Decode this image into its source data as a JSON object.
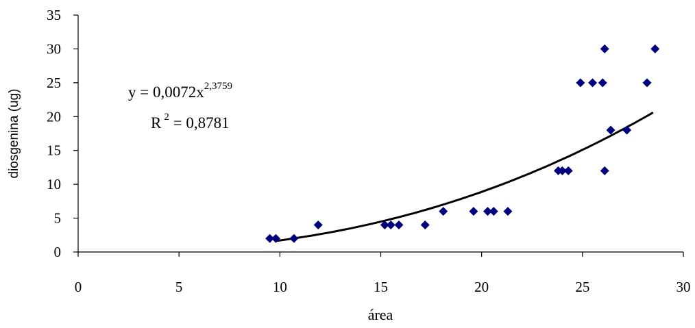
{
  "chart_data": {
    "type": "scatter",
    "xlabel": "área",
    "ylabel": "diosgenina (ug)",
    "xlim": [
      0,
      30
    ],
    "ylim": [
      0,
      35
    ],
    "x_ticks": [
      0,
      5,
      10,
      15,
      20,
      25,
      30
    ],
    "y_ticks": [
      0,
      5,
      10,
      15,
      20,
      25,
      30,
      35
    ],
    "grid": false,
    "marker": "diamond",
    "marker_color": "#00007f",
    "trendline": {
      "type": "power",
      "a": 0.0072,
      "b": 2.3759,
      "x_range": [
        9.8,
        28.5
      ],
      "color": "#000000"
    },
    "equation": {
      "prefix": "y = 0,0072x",
      "exponent": "2,3759",
      "r_prefix": "R",
      "r_exponent": "2",
      "r_value": " = 0,8781"
    },
    "points": [
      {
        "x": 9.5,
        "y": 2
      },
      {
        "x": 9.8,
        "y": 2
      },
      {
        "x": 10.7,
        "y": 2
      },
      {
        "x": 11.9,
        "y": 4
      },
      {
        "x": 15.2,
        "y": 4
      },
      {
        "x": 15.5,
        "y": 4
      },
      {
        "x": 15.9,
        "y": 4
      },
      {
        "x": 17.2,
        "y": 4
      },
      {
        "x": 18.1,
        "y": 6
      },
      {
        "x": 19.6,
        "y": 6
      },
      {
        "x": 20.3,
        "y": 6
      },
      {
        "x": 20.6,
        "y": 6
      },
      {
        "x": 21.3,
        "y": 6
      },
      {
        "x": 23.8,
        "y": 12
      },
      {
        "x": 24.0,
        "y": 12
      },
      {
        "x": 24.3,
        "y": 12
      },
      {
        "x": 26.1,
        "y": 12
      },
      {
        "x": 24.9,
        "y": 25
      },
      {
        "x": 25.5,
        "y": 25
      },
      {
        "x": 26.0,
        "y": 25
      },
      {
        "x": 28.2,
        "y": 25
      },
      {
        "x": 26.1,
        "y": 30
      },
      {
        "x": 28.6,
        "y": 30
      },
      {
        "x": 26.4,
        "y": 18
      },
      {
        "x": 27.2,
        "y": 18
      }
    ]
  }
}
